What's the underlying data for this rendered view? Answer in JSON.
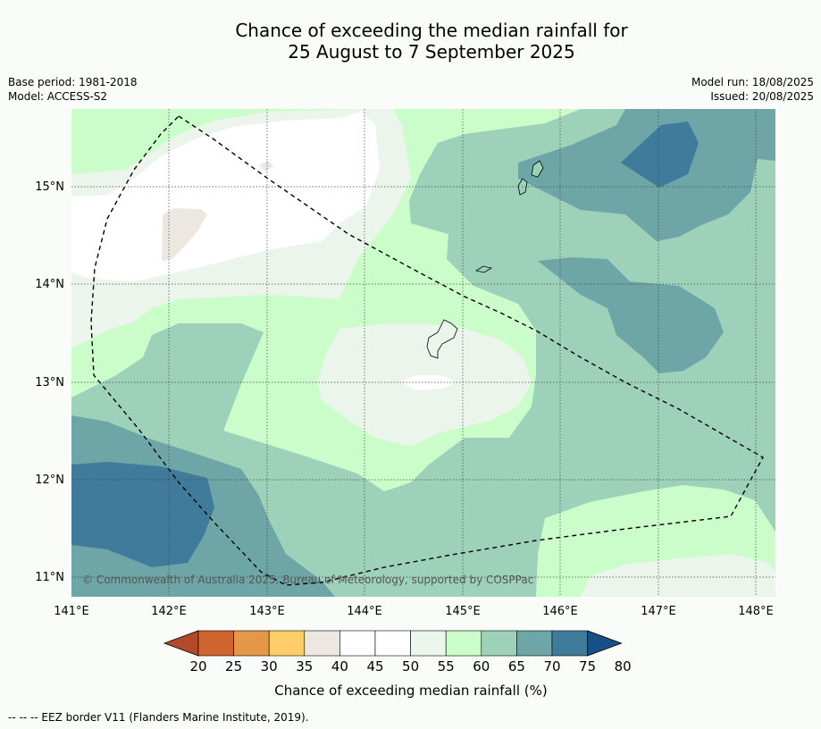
{
  "title_line1": "Chance of exceeding the median rainfall for",
  "title_line2": "25 August to 7 September 2025",
  "base_period": "Base period: 1981-2018",
  "model": "Model: ACCESS-S2",
  "model_run": "Model run: 18/08/2025",
  "issued": "Issued: 20/08/2025",
  "lat_ticks": [
    "15°N",
    "14°N",
    "13°N",
    "12°N",
    "11°N"
  ],
  "lon_ticks": [
    "141°E",
    "142°E",
    "143°E",
    "144°E",
    "145°E",
    "146°E",
    "147°E",
    "148°E"
  ],
  "copyright": "© Commonwealth of Australia 2025, Bureau of Meteorology, supported by COSPPac",
  "colorbar": {
    "ticks": [
      "20",
      "25",
      "30",
      "35",
      "40",
      "45",
      "50",
      "55",
      "60",
      "65",
      "70",
      "75",
      "80"
    ],
    "colors": [
      "#b5482a",
      "#d0642f",
      "#e49749",
      "#fecd67",
      "#ece8e1",
      "#ffffff",
      "#ffffff",
      "#ebf5eb",
      "#cafdca",
      "#9ed1b9",
      "#6ea6a7",
      "#417b9b",
      "#174f87"
    ],
    "label": "Chance of exceeding median rainfall (%)"
  },
  "footer": "--  --  -- EEZ border V11 (Flanders Marine Institute, 2019)."
}
